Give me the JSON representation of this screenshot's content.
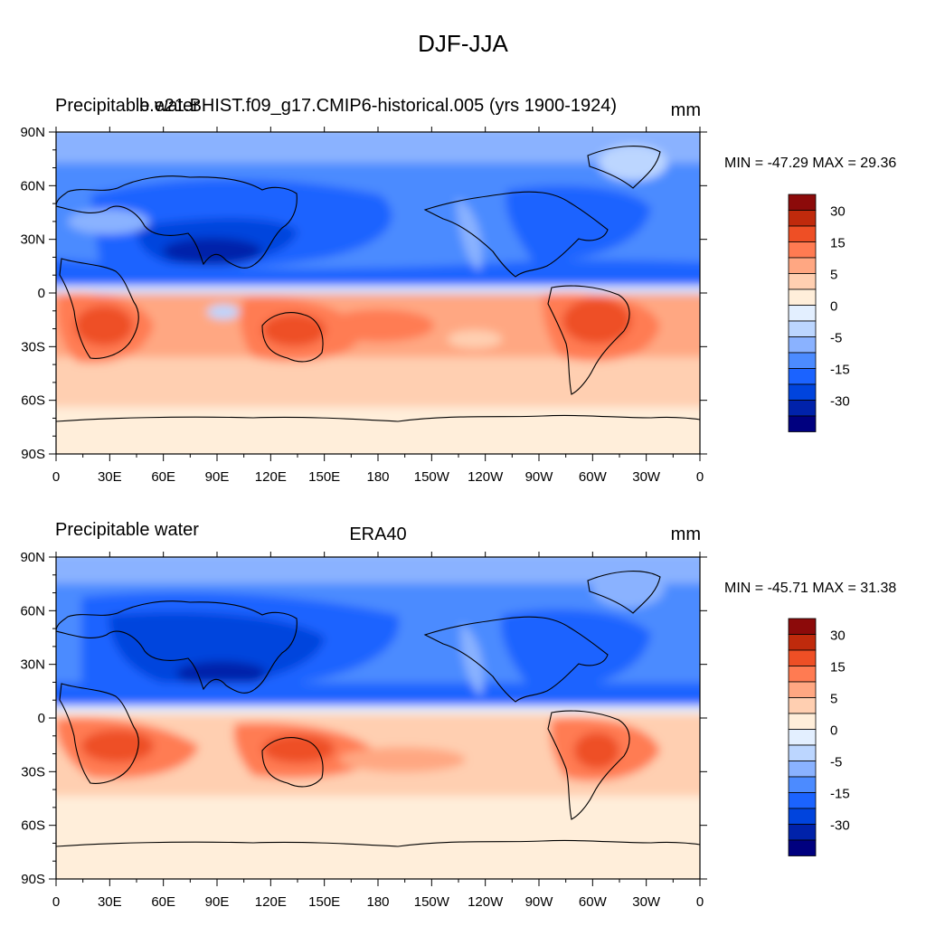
{
  "figure": {
    "title": "DJF-JJA"
  },
  "colorbar": {
    "colors": [
      "#00007f",
      "#0022aa",
      "#0044dd",
      "#1b63ff",
      "#4c8bff",
      "#8ab2ff",
      "#bcd6ff",
      "#e3efff",
      "#ffeeda",
      "#ffcfb1",
      "#ffa782",
      "#ff7b52",
      "#ee4f25",
      "#c02a0c",
      "#8c0a0a"
    ],
    "labels": [
      "-30",
      "-15",
      "-5",
      "0",
      "5",
      "15",
      "30"
    ]
  },
  "x_ticks": [
    "0",
    "30E",
    "60E",
    "90E",
    "120E",
    "150E",
    "180",
    "150W",
    "120W",
    "90W",
    "60W",
    "30W",
    "0"
  ],
  "y_ticks": [
    "90N",
    "60N",
    "30N",
    "0",
    "30S",
    "60S",
    "90S"
  ],
  "panels": [
    {
      "left_label": "Precipitable water",
      "center_label": "b.e21.BHIST.f09_g17.CMIP6-historical.005 (yrs 1900-1924)",
      "units": "mm",
      "stats": "MIN = -47.29 MAX =  29.36"
    },
    {
      "left_label": "Precipitable water",
      "center_label": "ERA40",
      "units": "mm",
      "stats": "MIN = -45.71 MAX =  31.38"
    }
  ]
}
